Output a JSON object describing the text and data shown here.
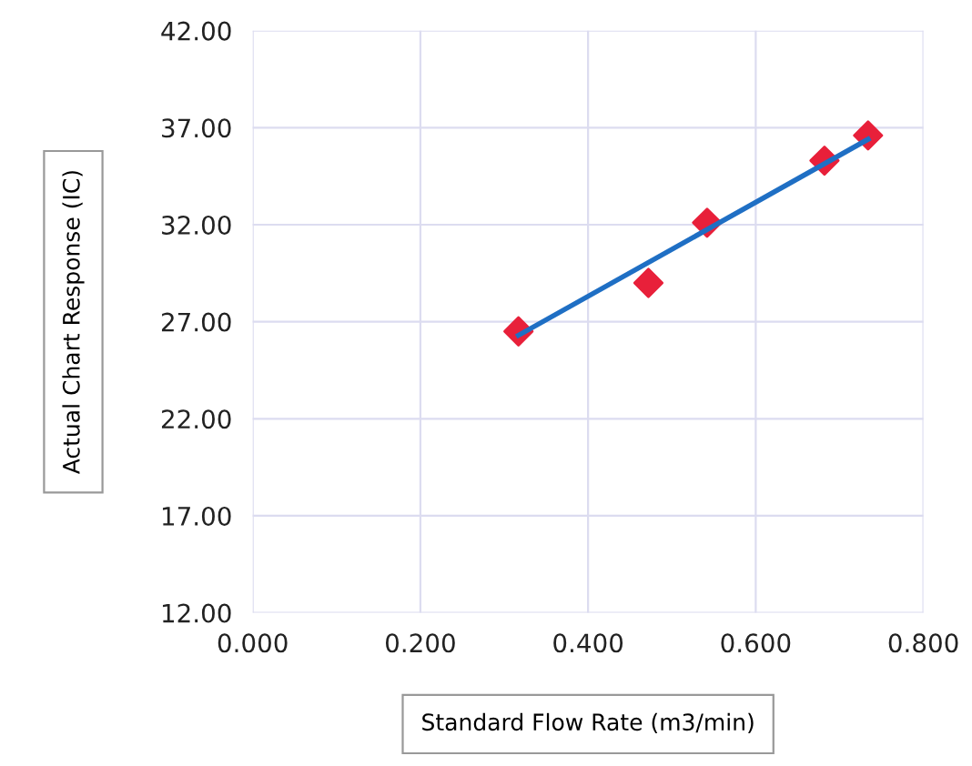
{
  "chart_data": {
    "type": "scatter",
    "xlabel": "Standard Flow Rate (m3/min)",
    "ylabel": "Actual Chart Response (IC)",
    "xlim": [
      0,
      0.8
    ],
    "xticks": [
      {
        "value": 0,
        "label": "0.000"
      },
      {
        "value": 0.2,
        "label": "0.200"
      },
      {
        "value": 0.4,
        "label": "0.400"
      },
      {
        "value": 0.6,
        "label": "0.600"
      },
      {
        "value": 0.8,
        "label": "0.800"
      }
    ],
    "ylim": [
      12,
      42
    ],
    "yticks": [
      {
        "value": 12,
        "label": "12.00"
      },
      {
        "value": 17,
        "label": "17.00"
      },
      {
        "value": 22,
        "label": "22.00"
      },
      {
        "value": 27,
        "label": "27.00"
      },
      {
        "value": 32,
        "label": "32.00"
      },
      {
        "value": 37,
        "label": "37.00"
      },
      {
        "value": 42,
        "label": "42.00"
      }
    ],
    "grid": true,
    "legend": false,
    "series": [
      {
        "color": "#e8203a",
        "marker": "diamond",
        "x": [
          0.317,
          0.472,
          0.542,
          0.682,
          0.734
        ],
        "values": [
          26.5,
          29.0,
          32.1,
          35.3,
          36.6
        ]
      },
      {
        "type": "line",
        "color": "#1f6fc4",
        "marker": "none",
        "line_style": "solid",
        "x": [
          0.317,
          0.734
        ],
        "values": [
          26.3,
          36.4
        ]
      }
    ]
  }
}
